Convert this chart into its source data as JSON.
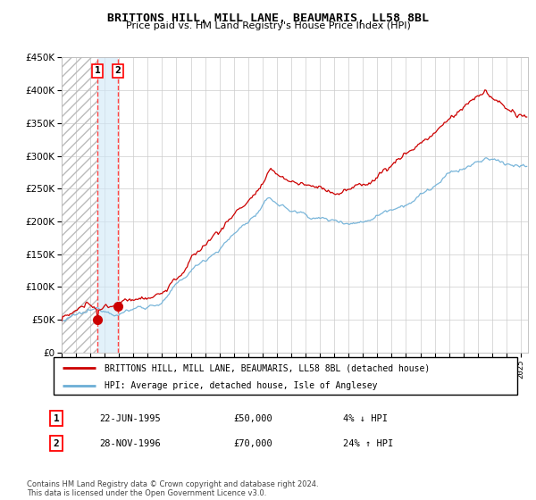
{
  "title": "BRITTONS HILL, MILL LANE, BEAUMARIS, LL58 8BL",
  "subtitle": "Price paid vs. HM Land Registry's House Price Index (HPI)",
  "legend_line1": "BRITTONS HILL, MILL LANE, BEAUMARIS, LL58 8BL (detached house)",
  "legend_line2": "HPI: Average price, detached house, Isle of Anglesey",
  "transaction1_date": "22-JUN-1995",
  "transaction1_price": "£50,000",
  "transaction1_hpi": "4% ↓ HPI",
  "transaction2_date": "28-NOV-1996",
  "transaction2_price": "£70,000",
  "transaction2_hpi": "24% ↑ HPI",
  "footer": "Contains HM Land Registry data © Crown copyright and database right 2024.\nThis data is licensed under the Open Government Licence v3.0.",
  "hpi_color": "#6baed6",
  "price_color": "#cc0000",
  "marker_color": "#cc0000",
  "vline_color": "#ff4444",
  "hatch_color": "#aaaaaa",
  "span_color": "#d0e8f8",
  "ylim": [
    0,
    450000
  ],
  "xlim_start": 1993.0,
  "xlim_end": 2025.5,
  "transaction1_year": 1995.47,
  "transaction2_year": 1996.91,
  "transaction1_value": 50000,
  "transaction2_value": 70000
}
